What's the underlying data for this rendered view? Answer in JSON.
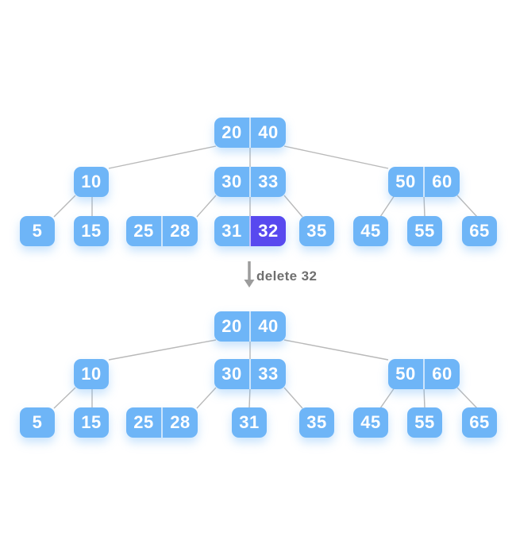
{
  "diagram_title": "btree-delete-32",
  "action": {
    "label": "delete 32",
    "icon": "down-arrow"
  },
  "colors": {
    "node_blue": "#6eb5f7",
    "highlight_purple": "#5849ef",
    "edge_gray": "#b9b9b9",
    "arrow_gray": "#9c9c9c",
    "label_gray": "#6f6f6f",
    "key_text": "#ffffff",
    "background": "#ffffff"
  },
  "trees": [
    {
      "name": "before-deletion",
      "nodes": [
        {
          "id": "root",
          "keys": [
            "20",
            "40"
          ]
        },
        {
          "id": "n10",
          "keys": [
            "10"
          ]
        },
        {
          "id": "n3033",
          "keys": [
            "30",
            "33"
          ]
        },
        {
          "id": "n5060",
          "keys": [
            "50",
            "60"
          ]
        },
        {
          "id": "n5",
          "keys": [
            "5"
          ]
        },
        {
          "id": "n15",
          "keys": [
            "15"
          ]
        },
        {
          "id": "n2528",
          "keys": [
            "25",
            "28"
          ]
        },
        {
          "id": "n3132",
          "keys": [
            "31",
            "32"
          ],
          "highlighted_key": "32"
        },
        {
          "id": "n35",
          "keys": [
            "35"
          ]
        },
        {
          "id": "n45",
          "keys": [
            "45"
          ]
        },
        {
          "id": "n55",
          "keys": [
            "55"
          ]
        },
        {
          "id": "n65",
          "keys": [
            "65"
          ]
        }
      ]
    },
    {
      "name": "after-deletion",
      "nodes": [
        {
          "id": "root",
          "keys": [
            "20",
            "40"
          ]
        },
        {
          "id": "n10",
          "keys": [
            "10"
          ]
        },
        {
          "id": "n3033",
          "keys": [
            "30",
            "33"
          ]
        },
        {
          "id": "n5060",
          "keys": [
            "50",
            "60"
          ]
        },
        {
          "id": "n5",
          "keys": [
            "5"
          ]
        },
        {
          "id": "n15",
          "keys": [
            "15"
          ]
        },
        {
          "id": "n2528",
          "keys": [
            "25",
            "28"
          ]
        },
        {
          "id": "n31",
          "keys": [
            "31"
          ]
        },
        {
          "id": "n35",
          "keys": [
            "35"
          ]
        },
        {
          "id": "n45",
          "keys": [
            "45"
          ]
        },
        {
          "id": "n55",
          "keys": [
            "55"
          ]
        },
        {
          "id": "n65",
          "keys": [
            "65"
          ]
        }
      ]
    }
  ]
}
